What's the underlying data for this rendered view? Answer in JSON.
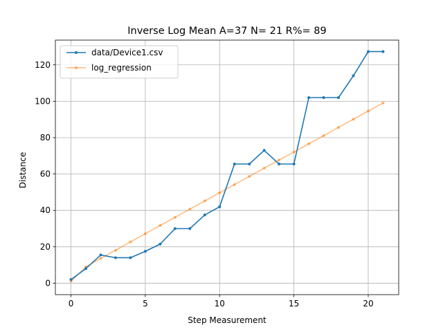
{
  "chart_data": {
    "type": "line",
    "title": "Inverse Log Mean A=37 N= 21 R%= 89",
    "xlabel": "Step Measurement",
    "ylabel": "Distance",
    "xlim": [
      -1.05,
      22.05
    ],
    "ylim": [
      -6.3,
      133.6
    ],
    "xticks": [
      0,
      5,
      10,
      15,
      20
    ],
    "yticks": [
      0,
      20,
      40,
      60,
      80,
      100,
      120
    ],
    "grid": true,
    "legend_position": "top-left",
    "series": [
      {
        "name": "data/Device1.csv",
        "color": "#1f77b4",
        "x": [
          0,
          1,
          2,
          3,
          4,
          5,
          6,
          7,
          8,
          9,
          10,
          11,
          12,
          13,
          14,
          15,
          16,
          17,
          18,
          19,
          20,
          21
        ],
        "y": [
          2,
          8,
          15.5,
          14,
          14,
          17.5,
          21.5,
          30,
          30,
          37.5,
          42,
          65.5,
          65.5,
          73,
          65.5,
          65.5,
          102,
          102,
          102,
          114,
          127.3,
          127.3
        ]
      },
      {
        "name": "log_regression",
        "color": "#ff7f0e",
        "x": [
          0,
          1,
          2,
          3,
          4,
          5,
          6,
          7,
          8,
          9,
          10,
          11,
          12,
          13,
          14,
          15,
          16,
          17,
          18,
          19,
          20,
          21
        ],
        "y": [
          1,
          9,
          13.6,
          18.1,
          22.7,
          27.2,
          31.7,
          36.2,
          40.7,
          45.2,
          49.7,
          54.2,
          58.7,
          63.2,
          67.7,
          72.1,
          76.6,
          81.1,
          85.6,
          90.1,
          94.6,
          99
        ]
      }
    ]
  }
}
